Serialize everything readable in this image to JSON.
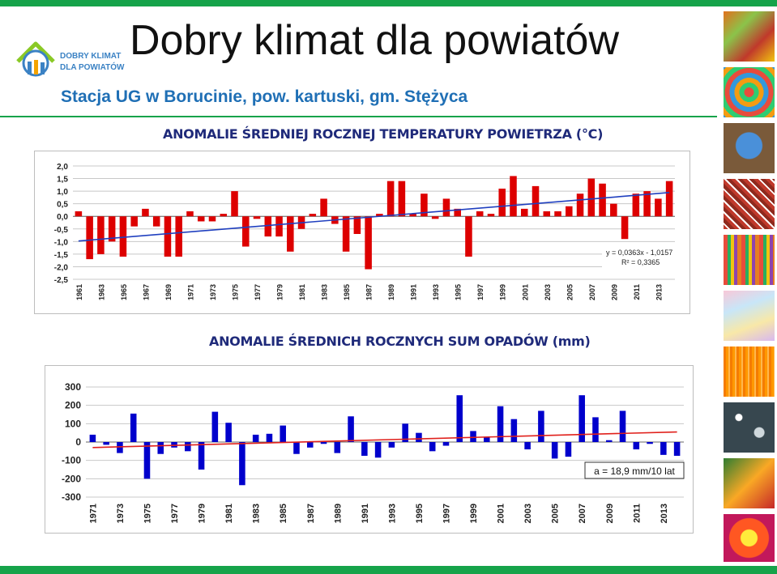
{
  "header": {
    "title": "Dobry klimat dla powiatów",
    "subtitle": "Stacja UG w Borucinie, pow. kartuski, gm. Stężyca",
    "logo_text_line1": "DOBRY KLIMAT",
    "logo_text_line2": "DLA POWIATÓW"
  },
  "colors": {
    "brand_green": "#16a34a",
    "subtitle_blue": "#1f6fb5",
    "bar_red": "#dd0000",
    "bar_blue": "#0000cc",
    "trend_blue": "#1f3fbf",
    "trend_red": "#e0201b"
  },
  "sidebar": {
    "images": [
      "autumn-leaves-image",
      "color-swirl-image",
      "earth-image",
      "crowd-image",
      "color-stripes-image",
      "pastel-image",
      "orange-texture-image",
      "bokeh-image",
      "tulip-image",
      "flower-image"
    ]
  },
  "chart_data": [
    {
      "type": "bar",
      "title": "ANOMALIE ŚREDNIEJ ROCZNEJ TEMPERATURY POWIETRZA (°C)",
      "x": [
        1961,
        1962,
        1963,
        1964,
        1965,
        1966,
        1967,
        1968,
        1969,
        1970,
        1971,
        1972,
        1973,
        1974,
        1975,
        1976,
        1977,
        1978,
        1979,
        1980,
        1981,
        1982,
        1983,
        1984,
        1985,
        1986,
        1987,
        1988,
        1989,
        1990,
        1991,
        1992,
        1993,
        1994,
        1995,
        1996,
        1997,
        1998,
        1999,
        2000,
        2001,
        2002,
        2003,
        2004,
        2005,
        2006,
        2007,
        2008,
        2009,
        2010,
        2011,
        2012,
        2013,
        2014
      ],
      "x_tick_labels": [
        "1961",
        "1963",
        "1965",
        "1967",
        "1969",
        "1971",
        "1973",
        "1975",
        "1977",
        "1979",
        "1981",
        "1983",
        "1985",
        "1987",
        "1989",
        "1991",
        "1993",
        "1995",
        "1997",
        "1999",
        "2001",
        "2003",
        "2005",
        "2007",
        "2009",
        "2011",
        "2013"
      ],
      "values": [
        0.2,
        -1.7,
        -1.5,
        -1.0,
        -1.6,
        -0.4,
        0.3,
        -0.4,
        -1.6,
        -1.6,
        0.2,
        -0.2,
        -0.2,
        0.1,
        1.0,
        -1.2,
        -0.1,
        -0.8,
        -0.8,
        -1.4,
        -0.5,
        0.1,
        0.7,
        -0.3,
        -1.4,
        -0.7,
        -2.1,
        0.1,
        1.4,
        1.4,
        0.1,
        0.9,
        -0.1,
        0.7,
        0.3,
        -1.6,
        0.2,
        0.1,
        1.1,
        1.6,
        0.3,
        1.2,
        0.2,
        0.2,
        0.4,
        0.9,
        1.5,
        1.3,
        0.5,
        -0.9,
        0.9,
        1.0,
        0.7,
        1.4
      ],
      "ylim": [
        -2.5,
        2.0
      ],
      "y_ticks": [
        2.0,
        1.5,
        1.0,
        0.5,
        0.0,
        -0.5,
        -1.0,
        -1.5,
        -2.0,
        -2.5
      ],
      "y_tick_labels": [
        "2,0",
        "1,5",
        "1,0",
        "0,5",
        "0,0",
        "-0,5",
        "-1,0",
        "-1,5",
        "-2,0",
        "-2,5"
      ],
      "trendline": {
        "slope": 0.0363,
        "intercept": -1.0157
      },
      "annotations": [
        "y = 0,0363x - 1,0157",
        "R² = 0,3365"
      ],
      "grid": true
    },
    {
      "type": "bar",
      "title": "ANOMALIE ŚREDNICH ROCZNYCH SUM OPADÓW (mm)",
      "x": [
        1971,
        1972,
        1973,
        1974,
        1975,
        1976,
        1977,
        1978,
        1979,
        1980,
        1981,
        1982,
        1983,
        1984,
        1985,
        1986,
        1987,
        1988,
        1989,
        1990,
        1991,
        1992,
        1993,
        1994,
        1995,
        1996,
        1997,
        1998,
        1999,
        2000,
        2001,
        2002,
        2003,
        2004,
        2005,
        2006,
        2007,
        2008,
        2009,
        2010,
        2011,
        2012,
        2013,
        2014
      ],
      "x_tick_labels": [
        "1971",
        "1973",
        "1975",
        "1977",
        "1979",
        "1981",
        "1983",
        "1985",
        "1987",
        "1989",
        "1991",
        "1993",
        "1995",
        "1997",
        "1999",
        "2001",
        "2003",
        "2005",
        "2007",
        "2009",
        "2011",
        "2013"
      ],
      "values": [
        40,
        -15,
        -60,
        155,
        -200,
        -65,
        -30,
        -50,
        -150,
        165,
        105,
        -235,
        40,
        45,
        90,
        -65,
        -30,
        -10,
        -60,
        140,
        -75,
        -85,
        -30,
        100,
        50,
        -50,
        -20,
        255,
        60,
        25,
        195,
        125,
        -40,
        170,
        -90,
        -80,
        255,
        135,
        10,
        170,
        -40,
        -10,
        -70,
        -75
      ],
      "ylim": [
        -300,
        300
      ],
      "y_ticks": [
        300,
        200,
        100,
        0,
        -100,
        -200,
        -300
      ],
      "y_tick_labels": [
        "300",
        "200",
        "100",
        "0",
        "-100",
        "-200",
        "-300"
      ],
      "trendline": {
        "start": -30,
        "end": 55
      },
      "annotations": [
        "a = 18,9 mm/10 lat"
      ],
      "grid": true
    }
  ]
}
